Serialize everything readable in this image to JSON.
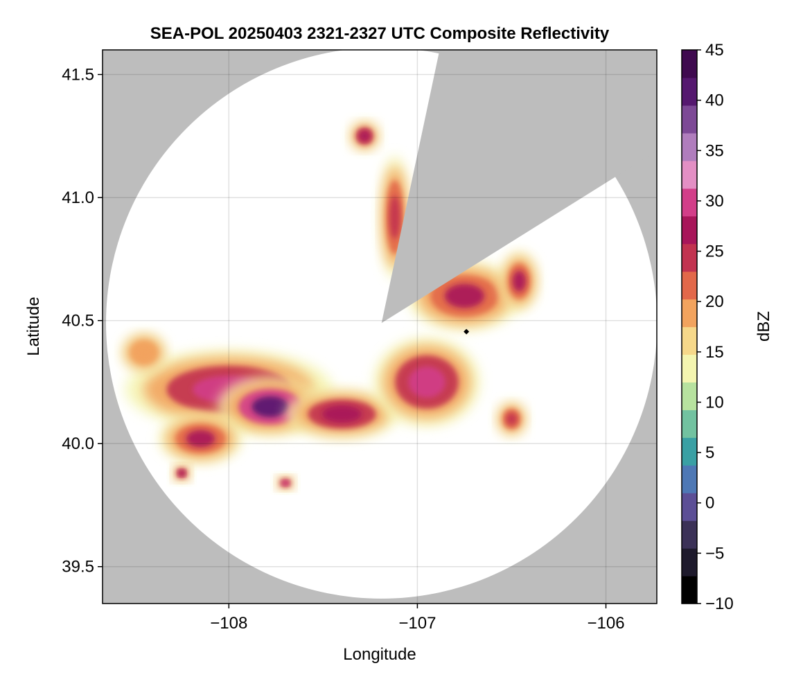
{
  "chart_data": {
    "type": "heatmap",
    "title": "SEA-POL 20250403 2321-2327 UTC Composite Reflectivity",
    "xlabel": "Longitude",
    "ylabel": "Latitude",
    "xlim": [
      -108.67,
      -105.73
    ],
    "ylim": [
      39.35,
      41.6
    ],
    "x_ticks": [
      -108,
      -107,
      -106
    ],
    "x_tick_labels": [
      "−108",
      "−107",
      "−106"
    ],
    "y_ticks": [
      39.5,
      40.0,
      40.5,
      41.0,
      41.5
    ],
    "y_tick_labels": [
      "39.5",
      "40.0",
      "40.5",
      "41.0",
      "41.5"
    ],
    "grid": true,
    "radar_site": {
      "lon": -107.19,
      "lat": 40.49
    },
    "coverage_radius_deg_lat": 1.12,
    "no_data_color": "#bdbdbd",
    "blocked_sectors": [
      {
        "from_azimuth_deg": 12,
        "to_azimuth_deg": 58
      }
    ],
    "marker": {
      "lon": -106.74,
      "lat": 40.455,
      "symbol": "diamond",
      "color": "#000000"
    },
    "colorbar": {
      "label": "dBZ",
      "range": [
        -10,
        45
      ],
      "ticks": [
        45,
        40,
        35,
        30,
        25,
        20,
        15,
        10,
        5,
        0,
        -5,
        -10
      ],
      "tick_labels": [
        "45",
        "40",
        "35",
        "30",
        "25",
        "20",
        "15",
        "10",
        "5",
        "0",
        "−5",
        "−10"
      ],
      "colormap": "Spectral-extended",
      "colors": [
        "#000000",
        "#1e1a2c",
        "#3b3157",
        "#5c4f96",
        "#4e78b5",
        "#3aa0a4",
        "#72c2a0",
        "#b7e29f",
        "#f4f5b0",
        "#f6d88a",
        "#f2a35e",
        "#e2684a",
        "#c23350",
        "#a8165a",
        "#d23e89",
        "#e38fc4",
        "#b07dbd",
        "#7d4996",
        "#55186f",
        "#3f0a4f"
      ]
    },
    "echo_regions": [
      {
        "name": "main-band-west",
        "lon": -108.0,
        "lat": 40.22,
        "dlon": 0.55,
        "dlat": 0.16,
        "peak_dbz": 30
      },
      {
        "name": "band-core",
        "lon": -107.78,
        "lat": 40.15,
        "dlon": 0.28,
        "dlat": 0.12,
        "peak_dbz": 40
      },
      {
        "name": "band-east",
        "lon": -107.4,
        "lat": 40.12,
        "dlon": 0.3,
        "dlat": 0.1,
        "peak_dbz": 28
      },
      {
        "name": "band-southwest",
        "lon": -108.15,
        "lat": 40.02,
        "dlon": 0.22,
        "dlat": 0.1,
        "peak_dbz": 26
      },
      {
        "name": "cell-southeast",
        "lon": -106.95,
        "lat": 40.25,
        "dlon": 0.28,
        "dlat": 0.18,
        "peak_dbz": 30
      },
      {
        "name": "cell-northeast",
        "lon": -106.75,
        "lat": 40.6,
        "dlon": 0.3,
        "dlat": 0.14,
        "peak_dbz": 26
      },
      {
        "name": "cell-far-northeast",
        "lon": -106.46,
        "lat": 40.66,
        "dlon": 0.1,
        "dlat": 0.12,
        "peak_dbz": 26
      },
      {
        "name": "north-strip",
        "lon": -107.12,
        "lat": 40.92,
        "dlon": 0.08,
        "dlat": 0.25,
        "peak_dbz": 24
      },
      {
        "name": "north-cell",
        "lon": -107.28,
        "lat": 41.25,
        "dlon": 0.08,
        "dlat": 0.06,
        "peak_dbz": 28
      },
      {
        "name": "west-edge",
        "lon": -108.45,
        "lat": 40.37,
        "dlon": 0.12,
        "dlat": 0.08,
        "peak_dbz": 20
      },
      {
        "name": "southwest-cell",
        "lon": -108.25,
        "lat": 39.88,
        "dlon": 0.05,
        "dlat": 0.035,
        "peak_dbz": 28
      },
      {
        "name": "south-cells",
        "lon": -107.7,
        "lat": 39.84,
        "dlon": 0.05,
        "dlat": 0.03,
        "peak_dbz": 30
      },
      {
        "name": "southeast-cells",
        "lon": -106.5,
        "lat": 40.1,
        "dlon": 0.08,
        "dlat": 0.07,
        "peak_dbz": 24
      }
    ]
  }
}
